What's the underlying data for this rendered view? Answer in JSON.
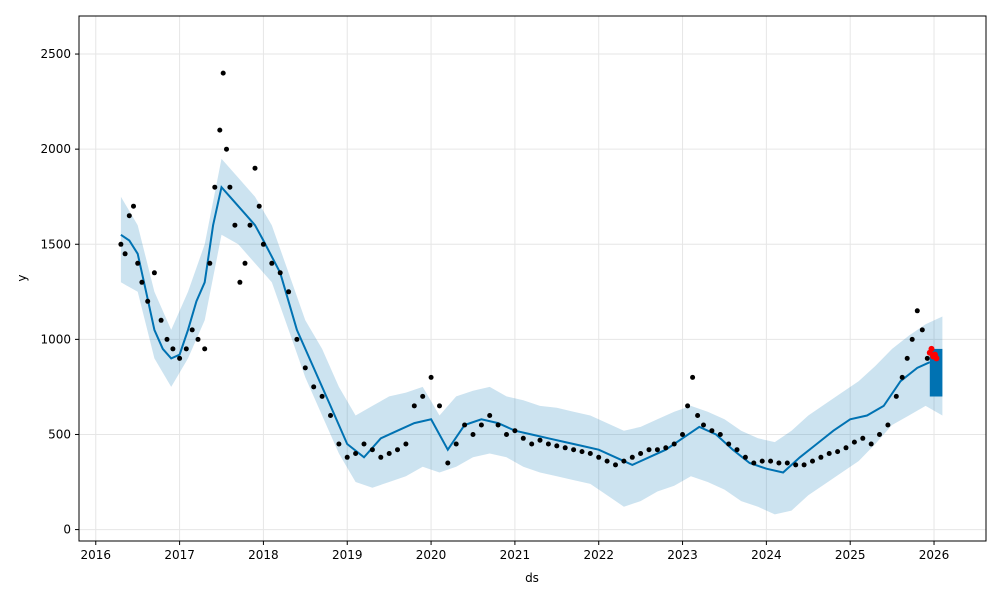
{
  "chart_data": {
    "type": "scatter",
    "title": "",
    "xlabel": "ds",
    "ylabel": "y",
    "xlim": [
      2015.8,
      2026.62
    ],
    "ylim": [
      -60,
      2700
    ],
    "x_ticks": [
      "2016",
      "2017",
      "2018",
      "2019",
      "2020",
      "2021",
      "2022",
      "2023",
      "2024",
      "2025",
      "2026"
    ],
    "y_ticks": [
      0,
      500,
      1000,
      1500,
      2000,
      2500
    ],
    "grid": true,
    "legend": "none",
    "colors": {
      "observed": "#000000",
      "forecast_line": "#0072B2",
      "uncertainty_band": "#0072B2",
      "recent_points": "#ff0000",
      "grid": "#e6e6e6"
    },
    "series": [
      {
        "name": "y",
        "kind": "observed",
        "x": [
          2016.3,
          2016.35,
          2016.4,
          2016.45,
          2016.5,
          2016.55,
          2016.62,
          2016.7,
          2016.78,
          2016.85,
          2016.92,
          2017.0,
          2017.08,
          2017.15,
          2017.22,
          2017.3,
          2017.36,
          2017.42,
          2017.48,
          2017.52,
          2017.56,
          2017.6,
          2017.66,
          2017.72,
          2017.78,
          2017.84,
          2017.9,
          2017.95,
          2018.0,
          2018.1,
          2018.2,
          2018.3,
          2018.4,
          2018.5,
          2018.6,
          2018.7,
          2018.8,
          2018.9,
          2019.0,
          2019.1,
          2019.2,
          2019.3,
          2019.4,
          2019.5,
          2019.6,
          2019.7,
          2019.8,
          2019.9,
          2020.0,
          2020.1,
          2020.2,
          2020.3,
          2020.4,
          2020.5,
          2020.6,
          2020.7,
          2020.8,
          2020.9,
          2021.0,
          2021.1,
          2021.2,
          2021.3,
          2021.4,
          2021.5,
          2021.6,
          2021.7,
          2021.8,
          2021.9,
          2022.0,
          2022.1,
          2022.2,
          2022.3,
          2022.4,
          2022.5,
          2022.6,
          2022.7,
          2022.8,
          2022.9,
          2023.0,
          2023.06,
          2023.12,
          2023.18,
          2023.25,
          2023.35,
          2023.45,
          2023.55,
          2023.65,
          2023.75,
          2023.85,
          2023.95,
          2024.05,
          2024.15,
          2024.25,
          2024.35,
          2024.45,
          2024.55,
          2024.65,
          2024.75,
          2024.85,
          2024.95,
          2025.05,
          2025.15,
          2025.25,
          2025.35,
          2025.45,
          2025.55,
          2025.62,
          2025.68,
          2025.74,
          2025.8,
          2025.86,
          2025.92
        ],
        "values": [
          1500,
          1450,
          1650,
          1700,
          1400,
          1300,
          1200,
          1350,
          1100,
          1000,
          950,
          900,
          950,
          1050,
          1000,
          950,
          1400,
          1800,
          2100,
          2400,
          2000,
          1800,
          1600,
          1300,
          1400,
          1600,
          1900,
          1700,
          1500,
          1400,
          1350,
          1250,
          1000,
          850,
          750,
          700,
          600,
          450,
          380,
          400,
          450,
          420,
          380,
          400,
          420,
          450,
          650,
          700,
          800,
          650,
          350,
          450,
          550,
          500,
          550,
          600,
          550,
          500,
          520,
          480,
          450,
          470,
          450,
          440,
          430,
          420,
          410,
          400,
          380,
          360,
          340,
          360,
          380,
          400,
          420,
          420,
          430,
          450,
          500,
          650,
          800,
          600,
          550,
          520,
          500,
          450,
          420,
          380,
          350,
          360,
          360,
          350,
          350,
          340,
          340,
          360,
          380,
          400,
          410,
          430,
          460,
          480,
          450,
          500,
          550,
          700,
          800,
          900,
          1000,
          1150,
          1050,
          900
        ]
      },
      {
        "name": "yhat",
        "kind": "forecast",
        "x": [
          2016.3,
          2016.4,
          2016.5,
          2016.6,
          2016.7,
          2016.8,
          2016.9,
          2017.0,
          2017.1,
          2017.2,
          2017.3,
          2017.4,
          2017.5,
          2017.6,
          2017.7,
          2017.8,
          2017.9,
          2018.0,
          2018.2,
          2018.4,
          2018.6,
          2018.8,
          2019.0,
          2019.2,
          2019.4,
          2019.6,
          2019.8,
          2020.0,
          2020.2,
          2020.4,
          2020.6,
          2020.8,
          2021.0,
          2021.2,
          2021.4,
          2021.6,
          2021.8,
          2022.0,
          2022.2,
          2022.4,
          2022.6,
          2022.8,
          2023.0,
          2023.2,
          2023.4,
          2023.6,
          2023.8,
          2024.0,
          2024.2,
          2024.4,
          2024.6,
          2024.8,
          2025.0,
          2025.2,
          2025.4,
          2025.6,
          2025.8,
          2025.95
        ],
        "values": [
          1550,
          1520,
          1450,
          1250,
          1050,
          950,
          900,
          920,
          1050,
          1200,
          1300,
          1600,
          1800,
          1750,
          1700,
          1650,
          1600,
          1520,
          1350,
          1050,
          850,
          650,
          450,
          380,
          480,
          520,
          560,
          580,
          420,
          550,
          580,
          560,
          520,
          500,
          480,
          460,
          440,
          420,
          380,
          340,
          380,
          420,
          480,
          540,
          500,
          420,
          350,
          320,
          300,
          380,
          450,
          520,
          580,
          600,
          650,
          780,
          850,
          880
        ]
      },
      {
        "name": "yhat_upper",
        "kind": "band",
        "x": [
          2016.3,
          2016.5,
          2016.7,
          2016.9,
          2017.1,
          2017.3,
          2017.5,
          2017.7,
          2017.9,
          2018.1,
          2018.3,
          2018.5,
          2018.7,
          2018.9,
          2019.1,
          2019.3,
          2019.5,
          2019.7,
          2019.9,
          2020.1,
          2020.3,
          2020.5,
          2020.7,
          2020.9,
          2021.1,
          2021.3,
          2021.5,
          2021.7,
          2021.9,
          2022.1,
          2022.3,
          2022.5,
          2022.7,
          2022.9,
          2023.1,
          2023.3,
          2023.5,
          2023.7,
          2023.9,
          2024.1,
          2024.3,
          2024.5,
          2024.7,
          2024.9,
          2025.1,
          2025.3,
          2025.5,
          2025.7,
          2025.9,
          2026.1
        ],
        "values": [
          1750,
          1600,
          1250,
          1050,
          1250,
          1500,
          1950,
          1850,
          1750,
          1600,
          1350,
          1100,
          950,
          750,
          600,
          650,
          700,
          720,
          750,
          600,
          700,
          730,
          750,
          700,
          680,
          650,
          640,
          620,
          600,
          560,
          520,
          540,
          580,
          620,
          650,
          620,
          580,
          520,
          480,
          460,
          520,
          600,
          660,
          720,
          780,
          860,
          950,
          1020,
          1080,
          1120
        ]
      },
      {
        "name": "yhat_lower",
        "kind": "band",
        "x": [
          2016.3,
          2016.5,
          2016.7,
          2016.9,
          2017.1,
          2017.3,
          2017.5,
          2017.7,
          2017.9,
          2018.1,
          2018.3,
          2018.5,
          2018.7,
          2018.9,
          2019.1,
          2019.3,
          2019.5,
          2019.7,
          2019.9,
          2020.1,
          2020.3,
          2020.5,
          2020.7,
          2020.9,
          2021.1,
          2021.3,
          2021.5,
          2021.7,
          2021.9,
          2022.1,
          2022.3,
          2022.5,
          2022.7,
          2022.9,
          2023.1,
          2023.3,
          2023.5,
          2023.7,
          2023.9,
          2024.1,
          2024.3,
          2024.5,
          2024.7,
          2024.9,
          2025.1,
          2025.3,
          2025.5,
          2025.7,
          2025.9,
          2026.1
        ],
        "values": [
          1300,
          1250,
          900,
          750,
          900,
          1100,
          1550,
          1500,
          1400,
          1300,
          1050,
          800,
          600,
          400,
          250,
          220,
          250,
          280,
          330,
          300,
          330,
          380,
          400,
          380,
          330,
          300,
          280,
          260,
          240,
          180,
          120,
          150,
          200,
          230,
          280,
          250,
          210,
          150,
          120,
          80,
          100,
          180,
          240,
          300,
          360,
          450,
          550,
          600,
          650,
          600
        ]
      },
      {
        "name": "recent",
        "kind": "highlight",
        "x": [
          2025.95,
          2025.97,
          2025.99,
          2026.01,
          2026.03
        ],
        "values": [
          930,
          950,
          910,
          920,
          900
        ]
      },
      {
        "name": "forecast_block",
        "kind": "forecast_range",
        "x": [
          2025.95,
          2026.1
        ],
        "values": [
          700,
          950
        ]
      }
    ]
  }
}
